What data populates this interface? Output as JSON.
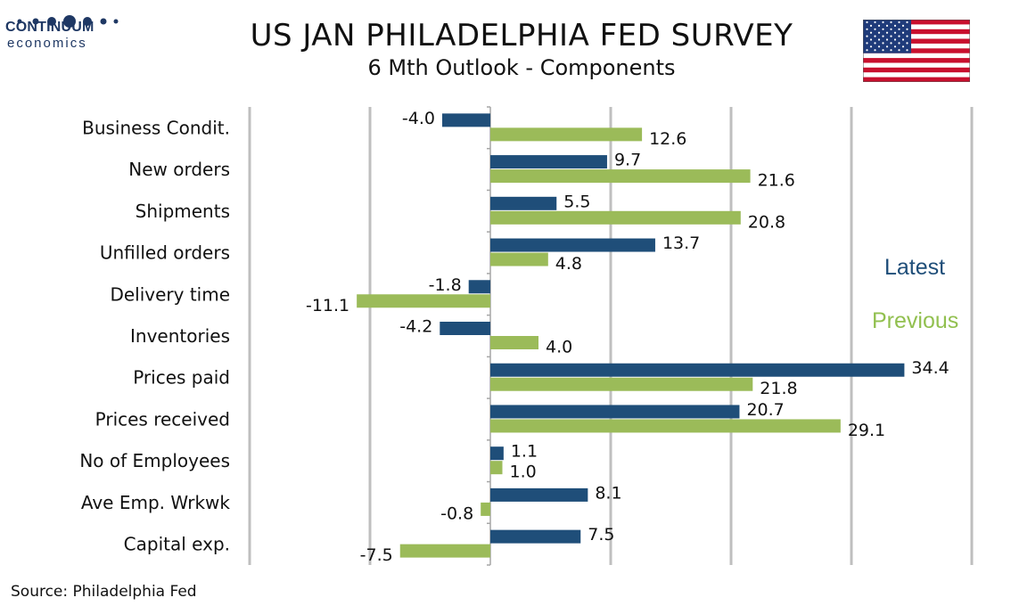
{
  "logo": {
    "line1": "CONTINUUM",
    "line2": "economics",
    "color": "#1f3864"
  },
  "title": "US JAN PHILADELPHIA FED SURVEY",
  "subtitle": "6 Mth Outlook - Components",
  "source": "Source: Philadelphia Fed",
  "legend": {
    "latest": "Latest",
    "previous": "Previous"
  },
  "colors": {
    "latest": "#1f4e79",
    "previous": "#9bbb59",
    "grid": "#bfbfbf"
  },
  "chart_data": {
    "type": "bar",
    "orientation": "horizontal",
    "title": "US JAN PHILADELPHIA FED SURVEY",
    "subtitle": "6 Mth Outlook - Components",
    "categories": [
      "Business Condit.",
      "New orders",
      "Shipments",
      "Unfilled orders",
      "Delivery time",
      "Inventories",
      "Prices paid",
      "Prices received",
      "No of Employees",
      "Ave Emp. Wrkwk",
      "Capital exp."
    ],
    "series": [
      {
        "name": "Latest",
        "color": "#1f4e79",
        "values": [
          -4.0,
          9.7,
          5.5,
          13.7,
          -1.8,
          -4.2,
          34.4,
          20.7,
          1.1,
          8.1,
          7.5
        ]
      },
      {
        "name": "Previous",
        "color": "#9bbb59",
        "values": [
          12.6,
          21.6,
          20.8,
          4.8,
          -11.1,
          4.0,
          21.8,
          29.1,
          1.0,
          -0.8,
          -7.5
        ]
      }
    ],
    "xlim": [
      -20,
      40
    ],
    "grid": true,
    "legend_position": "right"
  }
}
